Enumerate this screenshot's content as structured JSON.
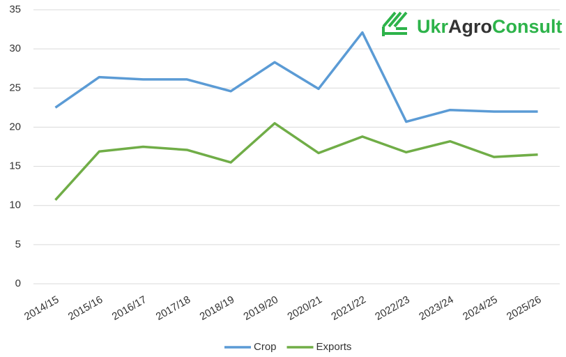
{
  "chart_data": {
    "type": "line",
    "logo": [
      "Ukr",
      "Agro",
      "Consult"
    ],
    "categories": [
      "2014/15",
      "2015/16",
      "2016/17",
      "2017/18",
      "2018/19",
      "2019/20",
      "2020/21",
      "2021/22",
      "2022/23",
      "2023/24",
      "2024/25",
      "2025/26"
    ],
    "series": [
      {
        "name": "Crop",
        "color": "#5b9bd5",
        "values": [
          22.5,
          26.4,
          26.1,
          26.1,
          24.6,
          28.3,
          24.9,
          32.1,
          20.7,
          22.2,
          22.0,
          22.0
        ]
      },
      {
        "name": "Exports",
        "color": "#70ad47",
        "values": [
          10.7,
          16.9,
          17.5,
          17.1,
          15.5,
          20.5,
          16.7,
          18.8,
          16.8,
          18.2,
          16.2,
          16.5
        ]
      }
    ],
    "ylim": [
      0,
      35
    ],
    "yticks": [
      0,
      5,
      10,
      15,
      20,
      25,
      30,
      35
    ],
    "grid": true,
    "legend": "bottom"
  }
}
